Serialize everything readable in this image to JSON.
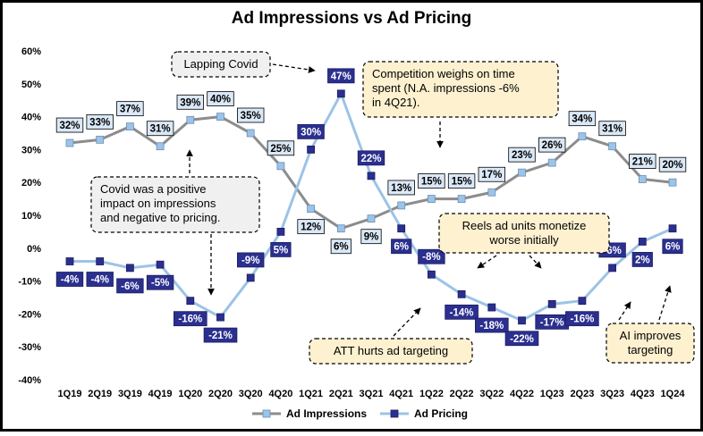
{
  "chart_data": {
    "type": "line",
    "title": "Ad Impressions vs Ad Pricing",
    "xlabel": "",
    "ylabel": "",
    "ylim": [
      -40,
      60
    ],
    "yticks": [
      60,
      50,
      40,
      30,
      20,
      10,
      0,
      -10,
      -20,
      -30,
      -40
    ],
    "ytick_labels": [
      "60%",
      "50%",
      "40%",
      "30%",
      "20%",
      "10%",
      "0%",
      "-10%",
      "-20%",
      "-30%",
      "-40%"
    ],
    "categories": [
      "1Q19",
      "2Q19",
      "3Q19",
      "4Q19",
      "1Q20",
      "2Q20",
      "3Q20",
      "4Q20",
      "1Q21",
      "2Q21",
      "3Q21",
      "4Q21",
      "1Q22",
      "2Q22",
      "3Q22",
      "4Q22",
      "1Q23",
      "2Q23",
      "3Q23",
      "4Q23",
      "1Q24"
    ],
    "legend_position": "bottom",
    "grid": false,
    "series": [
      {
        "name": "Ad Impressions",
        "line_color": "#8c8c8c",
        "marker_color": "#9dc3e6",
        "label_fill": "#dae8f7",
        "values": [
          32,
          33,
          37,
          31,
          39,
          40,
          35,
          25,
          12,
          6,
          9,
          13,
          15,
          15,
          17,
          23,
          26,
          34,
          31,
          21,
          20
        ],
        "labels": [
          "32%",
          "33%",
          "37%",
          "31%",
          "39%",
          "40%",
          "35%",
          "25%",
          "12%",
          "6%",
          "9%",
          "13%",
          "15%",
          "15%",
          "17%",
          "23%",
          "26%",
          "34%",
          "31%",
          "21%",
          "20%"
        ]
      },
      {
        "name": "Ad Pricing",
        "line_color": "#9dc3e6",
        "marker_color": "#2b2f8f",
        "label_fill": "#2b2f8f",
        "values": [
          -4,
          -4,
          -6,
          -5,
          -16,
          -21,
          -9,
          5,
          30,
          47,
          22,
          6,
          -8,
          -14,
          -18,
          -22,
          -17,
          -16,
          -6,
          2,
          6
        ],
        "labels": [
          "-4%",
          "-4%",
          "-6%",
          "-5%",
          "-16%",
          "-21%",
          "-9%",
          "5%",
          "30%",
          "47%",
          "22%",
          "6%",
          "-8%",
          "-14%",
          "-18%",
          "-22%",
          "-17%",
          "-16%",
          "-6%",
          "2%",
          "6%"
        ]
      }
    ],
    "annotations": [
      {
        "id": "lapping-covid",
        "lines": [
          "Lapping Covid"
        ],
        "fill": "#f0f0f0"
      },
      {
        "id": "competition",
        "lines": [
          "Competition weighs on time",
          "spent (N.A. impressions -6%",
          "in 4Q21)."
        ],
        "fill": "#fdf1d0"
      },
      {
        "id": "covid-positive",
        "lines": [
          "Covid was a positive",
          "impact on impressions",
          "and negative to pricing."
        ],
        "fill": "#f0f0f0"
      },
      {
        "id": "reels",
        "lines": [
          "Reels ad units monetize",
          "worse initially"
        ],
        "fill": "#fdf1d0"
      },
      {
        "id": "att",
        "lines": [
          "ATT hurts ad targeting"
        ],
        "fill": "#fdf1d0"
      },
      {
        "id": "ai",
        "lines": [
          "AI improves",
          "targeting"
        ],
        "fill": "#fdf1d0"
      }
    ]
  }
}
